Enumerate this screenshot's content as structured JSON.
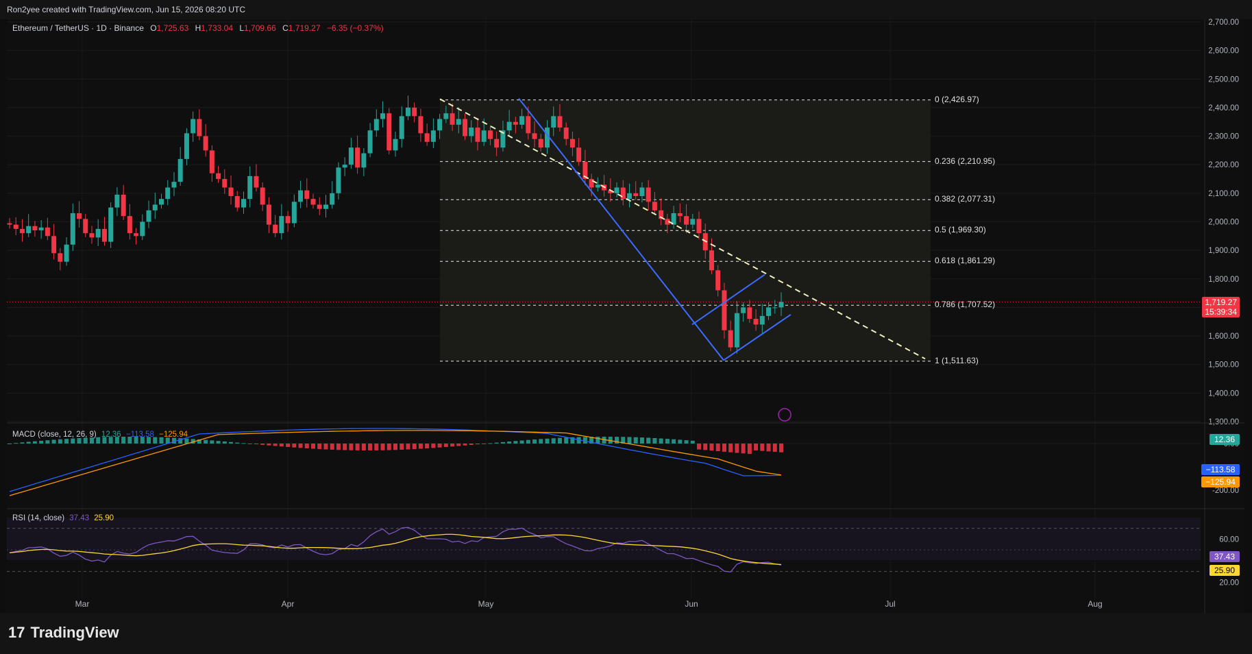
{
  "header": {
    "credit": "Ron2yee created with TradingView.com, Jun 15, 2026 08:20 UTC"
  },
  "legend": {
    "symbol": "Ethereum / TetherUS · 1D · Binance",
    "o_label": "O",
    "o": "1,725.63",
    "h_label": "H",
    "h": "1,733.04",
    "l_label": "L",
    "l": "1,709.66",
    "c_label": "C",
    "c": "1,719.27",
    "change": "−6.35 (−0.37%)"
  },
  "price_tag": {
    "price": "1,719.27",
    "countdown": "15:39:34"
  },
  "macd": {
    "title": "MACD (close, 12, 26, 9)",
    "hist": "12.36",
    "macd": "−113.58",
    "signal": "−125.94"
  },
  "rsi": {
    "title": "RSI (14, close)",
    "rsi": "37.43",
    "ma": "25.90"
  },
  "footer": {
    "brand": "TradingView",
    "logo": "tradingview-logo"
  },
  "colors": {
    "up": "#26a69a",
    "down": "#f23645",
    "macd": "#2962ff",
    "signal": "#ff9800",
    "rsi": "#7e57c2",
    "rsi_ma": "#fdd835",
    "trend": "#3d6bff"
  },
  "chart_data": [
    {
      "type": "candlestick",
      "title": "Ethereum / TetherUS · 1D · Binance",
      "price_axis": {
        "ylim": [
          1300,
          2700
        ],
        "ticks": [
          "2,700.00",
          "2,600.00",
          "2,500.00",
          "2,400.00",
          "2,300.00",
          "2,200.00",
          "2,100.00",
          "2,000.00",
          "1,900.00",
          "1,800.00",
          "1,700.00",
          "1,600.00",
          "1,500.00",
          "1,400.00",
          "1,300.00"
        ]
      },
      "x_axis": {
        "labels": [
          "Mar",
          "Apr",
          "May",
          "Jun",
          "Jul",
          "Aug"
        ]
      },
      "last_price": 1719.27,
      "fib_levels": [
        {
          "label": "0 (2,426.97)",
          "value": 2426.97
        },
        {
          "label": "0.236 (2,210.95)",
          "value": 2210.95
        },
        {
          "label": "0.382 (2,077.31)",
          "value": 2077.31
        },
        {
          "label": "0.5 (1,969.30)",
          "value": 1969.3
        },
        {
          "label": "0.618 (1,861.29)",
          "value": 1861.29
        },
        {
          "label": "0.786 (1,707.52)",
          "value": 1707.52
        },
        {
          "label": "1 (1,511.63)",
          "value": 1511.63
        }
      ],
      "grid": true
    },
    {
      "type": "macd",
      "title": "MACD (close, 12, 26, 9)",
      "ticks": [
        "0.00",
        "-200.00"
      ],
      "values": {
        "histogram": 12.36,
        "macd": -113.58,
        "signal": -125.94
      }
    },
    {
      "type": "rsi",
      "title": "RSI (14, close)",
      "ticks": [
        "60.00",
        "20.00"
      ],
      "values": {
        "rsi": 37.43,
        "rsi_ma": 25.9
      }
    }
  ]
}
